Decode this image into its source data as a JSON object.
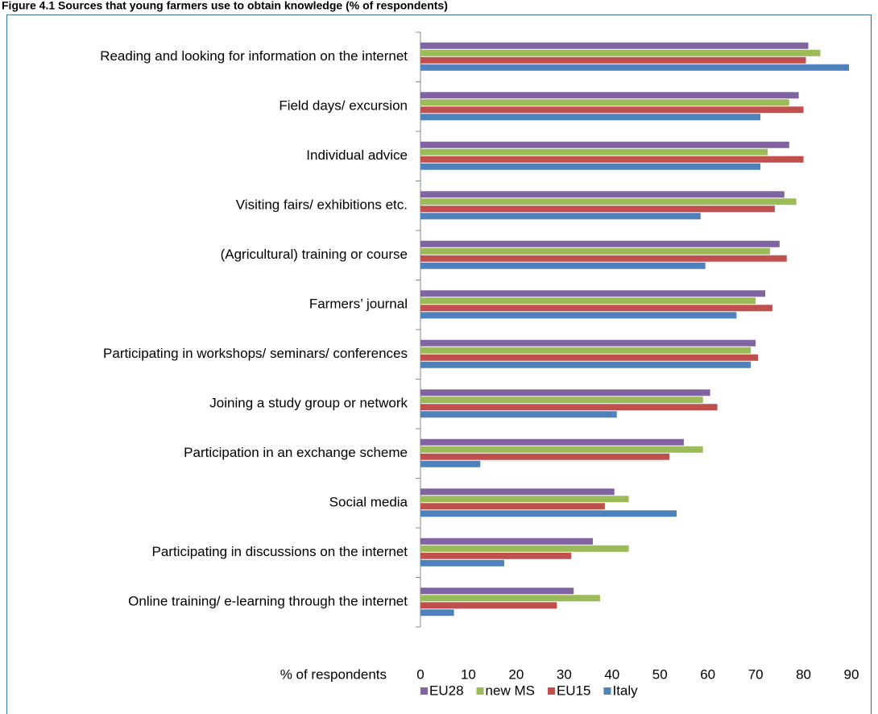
{
  "chart_data": {
    "type": "hbar",
    "title": "Figure 4.1 Sources that young farmers use to obtain knowledge (% of respondents)",
    "xlabel": "% of respondents",
    "categories": [
      "Reading and looking for information on the internet",
      "Field days/ excursion",
      "Individual advice",
      "Visiting fairs/ exhibitions etc.",
      "(Agricultural) training or course",
      "Farmers’ journal",
      "Participating in workshops/ seminars/ conferences",
      "Joining a study group or network",
      "Participation in an exchange scheme",
      "Social media",
      "Participating in discussions on the internet",
      "Online training/ e-learning through the internet"
    ],
    "series": [
      {
        "name": "EU28",
        "color": "#8064a2",
        "values": [
          81,
          79,
          77,
          76,
          75,
          72,
          70,
          60.5,
          55,
          40.5,
          36,
          32
        ]
      },
      {
        "name": "new MS",
        "color": "#9bbb59",
        "values": [
          83.5,
          77,
          72.5,
          78.5,
          73,
          70,
          69,
          59,
          59,
          43.5,
          43.5,
          37.5
        ]
      },
      {
        "name": "EU15",
        "color": "#c0504d",
        "values": [
          80.5,
          80,
          80,
          74,
          76.5,
          73.5,
          70.5,
          62,
          52,
          38.5,
          31.5,
          28.5
        ]
      },
      {
        "name": "Italy",
        "color": "#4f81bd",
        "values": [
          89.5,
          71,
          71,
          58.5,
          59.5,
          66,
          69,
          41,
          12.5,
          53.5,
          17.5,
          7
        ]
      }
    ],
    "xlim": [
      0,
      90
    ],
    "xticks": [
      0,
      10,
      20,
      30,
      40,
      50,
      60,
      70,
      80,
      90
    ],
    "legend": "bottom"
  }
}
